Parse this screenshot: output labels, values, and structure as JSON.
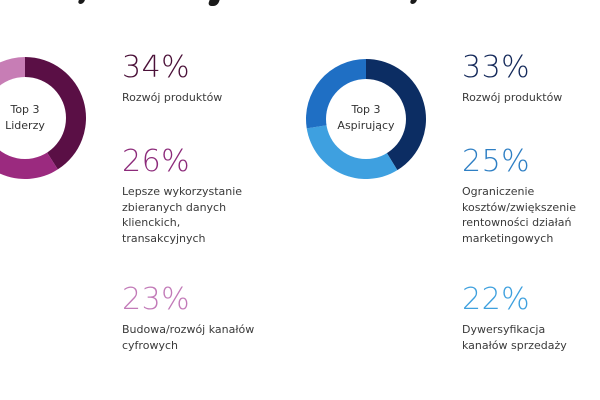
{
  "groups": [
    {
      "id": "liderzy",
      "donut_label_line1": "Top 3",
      "donut_label_line2": "Liderzy",
      "stats": [
        {
          "value": "34%",
          "label": "Rozwój produktów",
          "color": "#4a1038"
        },
        {
          "value": "26%",
          "label": "Lepsze wykorzystanie\nzbieranych danych\nklienckich,\ntransakcyjnych",
          "color": "#8c2a7a"
        },
        {
          "value": "23%",
          "label": "Budowa/rozwój kanałów\ncyfrowych",
          "color": "#c27ab8"
        }
      ]
    },
    {
      "id": "aspirujacy",
      "donut_label_line1": "Top 3",
      "donut_label_line2": "Aspirujący",
      "stats": [
        {
          "value": "33%",
          "label": "Rozwój produktów",
          "color": "#14295a"
        },
        {
          "value": "25%",
          "label": "Ograniczenie\nkosztów/zwiększenie\nrentowności działań\nmarketingowych",
          "color": "#2e7fc4"
        },
        {
          "value": "22%",
          "label": "Dywersyfikacja\nkanałów sprzedaży",
          "color": "#3ea0de"
        }
      ]
    }
  ],
  "chart_data": [
    {
      "type": "pie",
      "title": "Top 3 Liderzy",
      "categories": [
        "Rozwój produktów",
        "Lepsze wykorzystanie zbieranych danych klienckich, transakcyjnych",
        "Budowa/rozwój kanałów cyfrowych"
      ],
      "values": [
        34,
        26,
        23
      ],
      "colors": [
        "#5a0f45",
        "#9b2a7f",
        "#c77db5"
      ],
      "donut": true
    },
    {
      "type": "pie",
      "title": "Top 3 Aspirujący",
      "categories": [
        "Rozwój produktów",
        "Ograniczenie kosztów/zwiększenie rentowności działań marketingowych",
        "Dywersyfikacja kanałów sprzedaży"
      ],
      "values": [
        33,
        25,
        22
      ],
      "colors": [
        "#0c2d63",
        "#3ea0e0",
        "#1f6fc4"
      ],
      "donut": true
    }
  ]
}
